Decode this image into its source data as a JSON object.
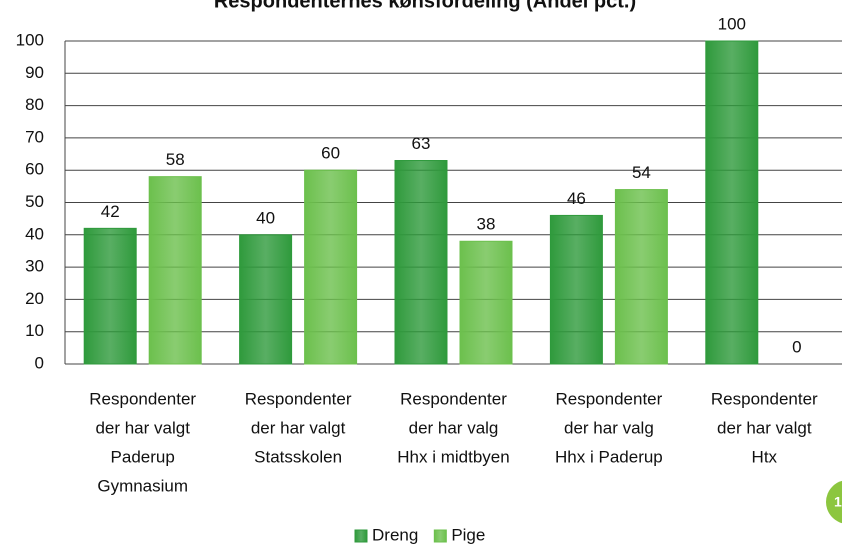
{
  "chart_data": {
    "type": "bar",
    "title": "Respondenternes kønsfordeling (Andel pct.)",
    "categories": [
      [
        "Respondenter",
        "der har valgt",
        "Paderup",
        "Gymnasium"
      ],
      [
        "Respondenter",
        "der har valgt",
        "Statsskolen"
      ],
      [
        "Respondenter",
        "der har valg",
        "Hhx i midtbyen"
      ],
      [
        "Respondenter",
        "der har valg",
        "Hhx i Paderup"
      ],
      [
        "Respondenter",
        "der har valgt",
        "Htx"
      ]
    ],
    "series": [
      {
        "name": "Dreng",
        "color": "#2f9a3c",
        "values": [
          42,
          40,
          63,
          46,
          100
        ]
      },
      {
        "name": "Pige",
        "color": "#6cc04d",
        "values": [
          58,
          60,
          38,
          54,
          0
        ]
      }
    ],
    "ylim": [
      0,
      100
    ],
    "yticks": [
      0,
      10,
      20,
      30,
      40,
      50,
      60,
      70,
      80,
      90,
      100
    ],
    "grid": true,
    "legend": "bottom",
    "page_number": "1"
  }
}
